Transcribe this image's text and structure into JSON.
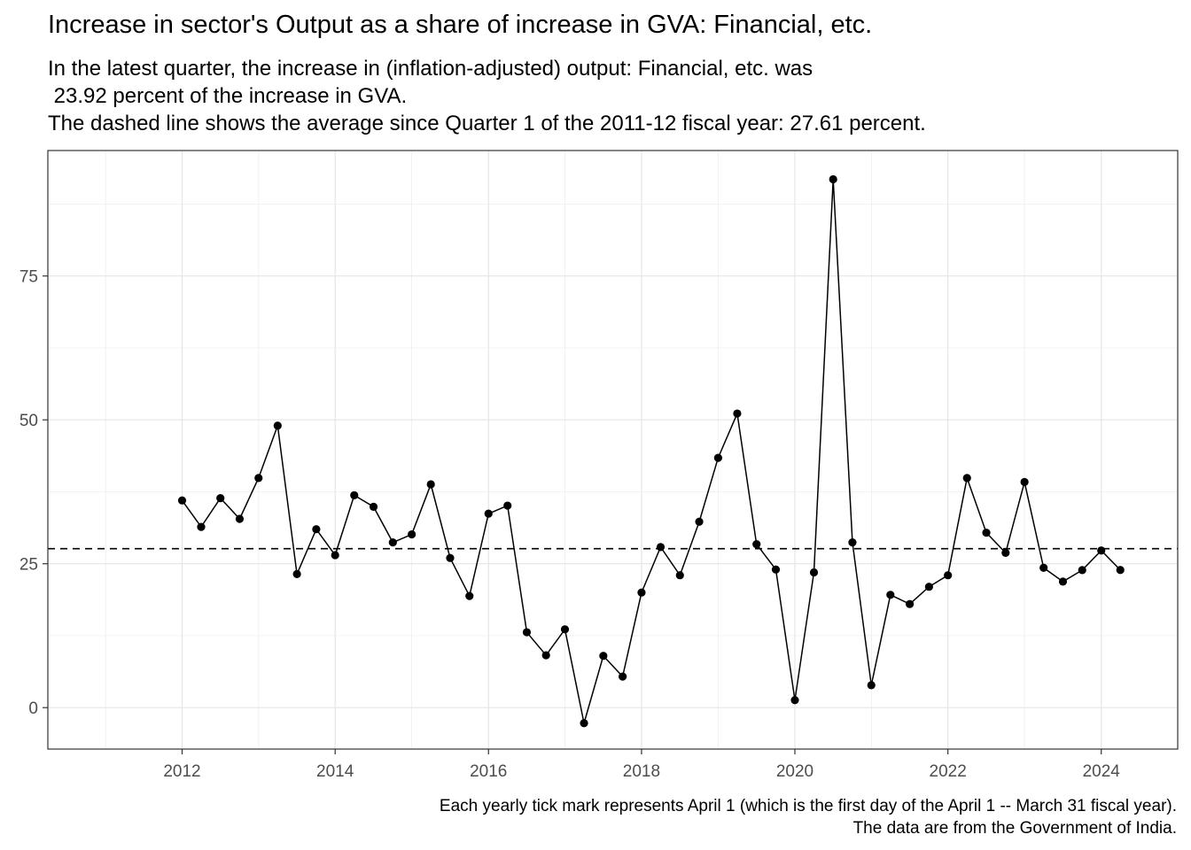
{
  "chart_data": {
    "type": "line",
    "title": "Increase in sector's Output as a share of increase in GVA: Financial, etc.",
    "subtitle": [
      "In the latest quarter, the increase in (inflation-adjusted) output: Financial, etc. was",
      " 23.92 percent of the increase in GVA.",
      "The dashed line shows the average since Quarter 1 of the 2011-12 fiscal year: 27.61 percent."
    ],
    "caption": [
      "Each yearly tick mark represents April 1 (which is the first day of the April 1 -- March 31 fiscal year).",
      "The data are from the Government of India."
    ],
    "xlabel": "",
    "ylabel": "",
    "x_ticks": [
      "2012",
      "2014",
      "2016",
      "2018",
      "2020",
      "2022",
      "2024"
    ],
    "y_ticks": [
      0,
      25,
      50,
      75
    ],
    "xlim": [
      "2010-07-01",
      "2025-04-01"
    ],
    "ylim": [
      -7.2,
      96.8
    ],
    "average_line": 27.61,
    "grid": true,
    "x": [
      "2012-04-01",
      "2012-07-01",
      "2012-10-01",
      "2013-01-01",
      "2013-04-01",
      "2013-07-01",
      "2013-10-01",
      "2014-01-01",
      "2014-04-01",
      "2014-07-01",
      "2014-10-01",
      "2015-01-01",
      "2015-04-01",
      "2015-07-01",
      "2015-10-01",
      "2016-01-01",
      "2016-04-01",
      "2016-07-01",
      "2016-10-01",
      "2017-01-01",
      "2017-04-01",
      "2017-07-01",
      "2017-10-01",
      "2018-01-01",
      "2018-04-01",
      "2018-07-01",
      "2018-10-01",
      "2019-01-01",
      "2019-04-01",
      "2019-07-01",
      "2019-10-01",
      "2020-01-01",
      "2020-04-01",
      "2020-07-01",
      "2020-10-01",
      "2021-01-01",
      "2021-04-01",
      "2021-07-01",
      "2021-10-01",
      "2022-01-01",
      "2022-04-01",
      "2022-07-01",
      "2022-10-01",
      "2023-01-01",
      "2023-04-01",
      "2023-07-01",
      "2023-10-01",
      "2024-01-01",
      "2024-04-01",
      "2024-07-01"
    ],
    "values": [
      36.0,
      31.4,
      36.4,
      32.8,
      39.9,
      49.0,
      23.2,
      31.0,
      26.5,
      36.9,
      34.9,
      28.7,
      30.1,
      38.8,
      26.0,
      19.4,
      33.7,
      35.1,
      13.1,
      9.1,
      13.6,
      -2.7,
      9.0,
      5.4,
      20.0,
      27.9,
      23.0,
      32.3,
      43.4,
      51.1,
      28.4,
      24.0,
      1.3,
      23.5,
      91.8,
      28.7,
      3.9,
      19.6,
      18.0,
      21.0,
      23.0,
      39.9,
      30.4,
      26.9,
      39.2,
      24.3,
      21.9,
      23.9,
      27.3,
      23.92
    ]
  }
}
